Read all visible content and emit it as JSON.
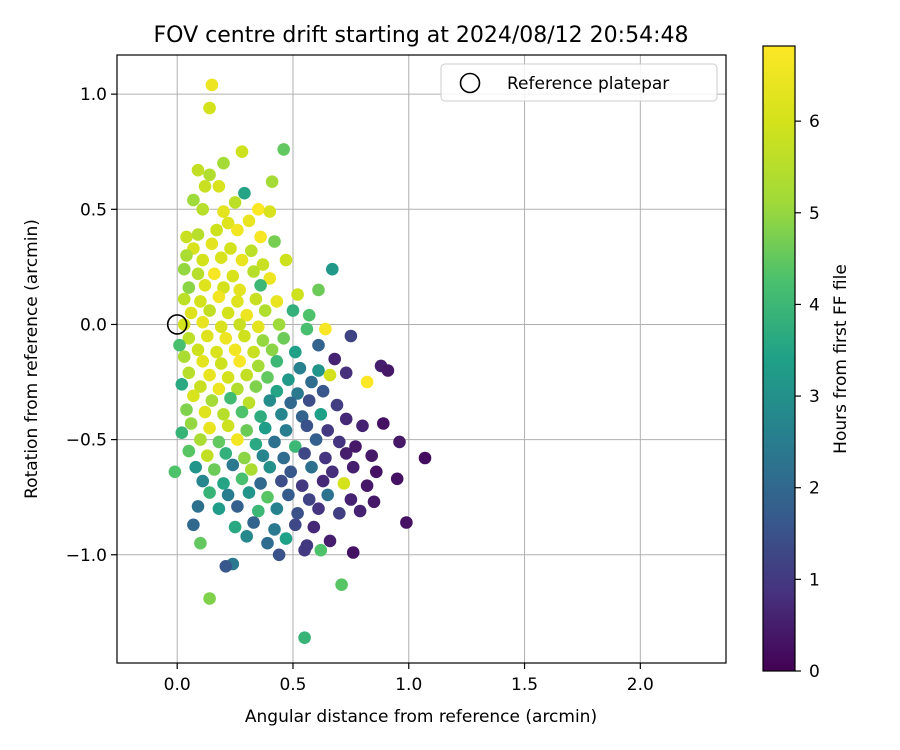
{
  "chart_data": {
    "type": "scatter",
    "title": "FOV centre drift starting at 2024/08/12 20:54:48",
    "xlabel": "Angular distance from reference (arcmin)",
    "ylabel": "Rotation from reference (arcmin)",
    "xlim": [
      -0.26,
      2.37
    ],
    "ylim": [
      -1.47,
      1.17
    ],
    "xticks": [
      0.0,
      0.5,
      1.0,
      1.5,
      2.0
    ],
    "xtick_labels": [
      "0.0",
      "0.5",
      "1.0",
      "1.5",
      "2.0"
    ],
    "yticks": [
      1.0,
      0.5,
      0.0,
      -0.5,
      -1.0
    ],
    "ytick_labels": [
      "1.0",
      "0.5",
      "0.0",
      "−0.5",
      "−1.0"
    ],
    "grid": true,
    "legend": {
      "placement": "top-right",
      "entries": [
        "Reference platepar"
      ]
    },
    "reference_point": {
      "x": 0.0,
      "y": 0.0,
      "marker": "open-circle"
    },
    "colorbar": {
      "label": "Hours from first FF file",
      "range": [
        0,
        6.82
      ],
      "ticks": [
        0,
        1,
        2,
        3,
        4,
        5,
        6
      ],
      "tick_labels": [
        "0",
        "1",
        "2",
        "3",
        "4",
        "5",
        "6"
      ],
      "colormap": "viridis"
    },
    "series": [
      {
        "marker": "filled-circle",
        "points": [
          [
            0.15,
            1.04,
            6.5
          ],
          [
            0.14,
            0.94,
            6.0
          ],
          [
            0.46,
            0.76,
            4.5
          ],
          [
            0.28,
            0.75,
            5.9
          ],
          [
            0.09,
            0.67,
            5.7
          ],
          [
            0.2,
            0.7,
            5.2
          ],
          [
            0.14,
            0.65,
            5.4
          ],
          [
            0.18,
            0.6,
            6.1
          ],
          [
            0.41,
            0.62,
            5.2
          ],
          [
            0.29,
            0.57,
            3.5
          ],
          [
            0.12,
            0.6,
            5.8
          ],
          [
            0.07,
            0.54,
            5.1
          ],
          [
            0.11,
            0.5,
            5.5
          ],
          [
            0.2,
            0.49,
            6.3
          ],
          [
            0.25,
            0.53,
            5.6
          ],
          [
            0.35,
            0.5,
            6.8
          ],
          [
            0.4,
            0.49,
            6.1
          ],
          [
            0.31,
            0.45,
            6.4
          ],
          [
            0.22,
            0.44,
            6.2
          ],
          [
            0.17,
            0.41,
            5.9
          ],
          [
            0.04,
            0.38,
            5.8
          ],
          [
            0.09,
            0.39,
            5.5
          ],
          [
            0.26,
            0.41,
            6.6
          ],
          [
            0.36,
            0.38,
            6.7
          ],
          [
            0.42,
            0.36,
            4.7
          ],
          [
            0.07,
            0.33,
            6.1
          ],
          [
            0.15,
            0.35,
            6.3
          ],
          [
            0.23,
            0.33,
            6.0
          ],
          [
            0.32,
            0.32,
            5.6
          ],
          [
            0.47,
            0.28,
            5.9
          ],
          [
            0.67,
            0.24,
            3.2
          ],
          [
            0.04,
            0.3,
            5.3
          ],
          [
            0.11,
            0.28,
            6.0
          ],
          [
            0.19,
            0.29,
            6.1
          ],
          [
            0.28,
            0.28,
            6.4
          ],
          [
            0.37,
            0.26,
            5.8
          ],
          [
            0.03,
            0.24,
            5.0
          ],
          [
            0.09,
            0.22,
            5.5
          ],
          [
            0.16,
            0.22,
            6.7
          ],
          [
            0.24,
            0.21,
            6.1
          ],
          [
            0.33,
            0.23,
            5.5
          ],
          [
            0.4,
            0.2,
            6.5
          ],
          [
            0.05,
            0.16,
            4.9
          ],
          [
            0.12,
            0.17,
            6.2
          ],
          [
            0.2,
            0.16,
            6.0
          ],
          [
            0.27,
            0.15,
            6.3
          ],
          [
            0.36,
            0.17,
            4.0
          ],
          [
            0.61,
            0.15,
            4.6
          ],
          [
            0.03,
            0.11,
            5.6
          ],
          [
            0.1,
            0.1,
            6.0
          ],
          [
            0.18,
            0.12,
            6.6
          ],
          [
            0.26,
            0.1,
            6.2
          ],
          [
            0.34,
            0.11,
            5.8
          ],
          [
            0.43,
            0.1,
            6.4
          ],
          [
            0.52,
            0.13,
            5.9
          ],
          [
            0.06,
            0.05,
            6.2
          ],
          [
            0.14,
            0.06,
            5.7
          ],
          [
            0.22,
            0.05,
            6.0
          ],
          [
            0.3,
            0.04,
            6.5
          ],
          [
            0.38,
            0.06,
            5.4
          ],
          [
            0.5,
            0.06,
            3.8
          ],
          [
            0.57,
            0.04,
            4.3
          ],
          [
            0.03,
            0.0,
            6.0
          ],
          [
            0.11,
            0.01,
            6.4
          ],
          [
            0.19,
            -0.01,
            6.1
          ],
          [
            0.27,
            0.0,
            5.8
          ],
          [
            0.35,
            -0.01,
            6.3
          ],
          [
            0.44,
            0.0,
            5.1
          ],
          [
            0.56,
            -0.02,
            4.2
          ],
          [
            0.64,
            -0.02,
            6.7
          ],
          [
            0.75,
            -0.05,
            1.2
          ],
          [
            0.05,
            -0.06,
            5.6
          ],
          [
            0.13,
            -0.05,
            6.2
          ],
          [
            0.21,
            -0.06,
            6.5
          ],
          [
            0.29,
            -0.05,
            5.9
          ],
          [
            0.37,
            -0.07,
            5.0
          ],
          [
            0.46,
            -0.06,
            4.6
          ],
          [
            0.61,
            -0.09,
            1.9
          ],
          [
            0.01,
            -0.09,
            4.2
          ],
          [
            0.09,
            -0.11,
            5.9
          ],
          [
            0.17,
            -0.12,
            6.1
          ],
          [
            0.25,
            -0.11,
            6.6
          ],
          [
            0.33,
            -0.12,
            5.8
          ],
          [
            0.41,
            -0.11,
            4.9
          ],
          [
            0.51,
            -0.12,
            3.4
          ],
          [
            0.68,
            -0.15,
            0.6
          ],
          [
            0.03,
            -0.14,
            5.3
          ],
          [
            0.11,
            -0.16,
            6.3
          ],
          [
            0.19,
            -0.17,
            5.9
          ],
          [
            0.27,
            -0.16,
            6.7
          ],
          [
            0.35,
            -0.18,
            5.2
          ],
          [
            0.43,
            -0.16,
            4.0
          ],
          [
            0.53,
            -0.19,
            2.6
          ],
          [
            0.61,
            -0.2,
            3.1
          ],
          [
            0.73,
            -0.21,
            0.8
          ],
          [
            0.88,
            -0.18,
            0.5
          ],
          [
            0.05,
            -0.21,
            5.5
          ],
          [
            0.14,
            -0.22,
            6.4
          ],
          [
            0.22,
            -0.23,
            6.0
          ],
          [
            0.3,
            -0.22,
            5.7
          ],
          [
            0.39,
            -0.23,
            4.5
          ],
          [
            0.48,
            -0.24,
            3.2
          ],
          [
            0.58,
            -0.25,
            2.1
          ],
          [
            0.66,
            -0.22,
            6.0
          ],
          [
            0.82,
            -0.25,
            6.8
          ],
          [
            0.91,
            -0.2,
            0.4
          ],
          [
            0.02,
            -0.26,
            3.6
          ],
          [
            0.1,
            -0.27,
            5.8
          ],
          [
            0.18,
            -0.28,
            6.5
          ],
          [
            0.26,
            -0.28,
            5.4
          ],
          [
            0.34,
            -0.27,
            4.8
          ],
          [
            0.43,
            -0.29,
            3.5
          ],
          [
            0.52,
            -0.3,
            2.4
          ],
          [
            0.63,
            -0.29,
            1.6
          ],
          [
            0.07,
            -0.31,
            6.1
          ],
          [
            0.15,
            -0.33,
            5.2
          ],
          [
            0.23,
            -0.32,
            4.1
          ],
          [
            0.31,
            -0.34,
            5.6
          ],
          [
            0.4,
            -0.33,
            2.9
          ],
          [
            0.49,
            -0.34,
            2.0
          ],
          [
            0.57,
            -0.33,
            1.4
          ],
          [
            0.69,
            -0.35,
            1.1
          ],
          [
            0.04,
            -0.37,
            4.8
          ],
          [
            0.12,
            -0.38,
            6.2
          ],
          [
            0.2,
            -0.39,
            5.5
          ],
          [
            0.28,
            -0.38,
            4.3
          ],
          [
            0.36,
            -0.4,
            3.7
          ],
          [
            0.45,
            -0.39,
            2.7
          ],
          [
            0.54,
            -0.4,
            1.9
          ],
          [
            0.62,
            -0.39,
            3.4
          ],
          [
            0.73,
            -0.41,
            0.7
          ],
          [
            0.06,
            -0.43,
            5.0
          ],
          [
            0.14,
            -0.45,
            6.4
          ],
          [
            0.22,
            -0.44,
            5.9
          ],
          [
            0.3,
            -0.46,
            4.6
          ],
          [
            0.38,
            -0.45,
            3.3
          ],
          [
            0.47,
            -0.46,
            2.5
          ],
          [
            0.56,
            -0.44,
            1.5
          ],
          [
            0.65,
            -0.46,
            1.0
          ],
          [
            0.8,
            -0.44,
            0.6
          ],
          [
            0.89,
            -0.43,
            0.3
          ],
          [
            0.02,
            -0.47,
            3.9
          ],
          [
            0.1,
            -0.5,
            5.3
          ],
          [
            0.18,
            -0.51,
            4.5
          ],
          [
            0.26,
            -0.5,
            6.6
          ],
          [
            0.34,
            -0.52,
            3.6
          ],
          [
            0.42,
            -0.51,
            2.2
          ],
          [
            0.51,
            -0.53,
            4.0
          ],
          [
            0.6,
            -0.5,
            1.8
          ],
          [
            0.7,
            -0.51,
            0.9
          ],
          [
            0.77,
            -0.53,
            0.4
          ],
          [
            0.96,
            -0.51,
            0.4
          ],
          [
            0.05,
            -0.55,
            4.4
          ],
          [
            0.13,
            -0.57,
            5.7
          ],
          [
            0.21,
            -0.56,
            3.8
          ],
          [
            0.29,
            -0.58,
            4.9
          ],
          [
            0.37,
            -0.57,
            2.7
          ],
          [
            0.46,
            -0.58,
            2.1
          ],
          [
            0.55,
            -0.56,
            1.3
          ],
          [
            0.64,
            -0.58,
            0.9
          ],
          [
            0.73,
            -0.56,
            0.5
          ],
          [
            0.84,
            -0.57,
            0.4
          ],
          [
            1.07,
            -0.58,
            0.2
          ],
          [
            0.08,
            -0.62,
            3.1
          ],
          [
            0.16,
            -0.63,
            4.6
          ],
          [
            0.24,
            -0.61,
            2.4
          ],
          [
            0.32,
            -0.63,
            5.3
          ],
          [
            0.4,
            -0.62,
            3.0
          ],
          [
            0.49,
            -0.64,
            1.6
          ],
          [
            0.58,
            -0.62,
            2.2
          ],
          [
            0.67,
            -0.64,
            0.8
          ],
          [
            0.76,
            -0.62,
            0.5
          ],
          [
            0.86,
            -0.64,
            0.3
          ],
          [
            -0.01,
            -0.64,
            4.3
          ],
          [
            0.11,
            -0.68,
            2.7
          ],
          [
            0.2,
            -0.69,
            3.5
          ],
          [
            0.28,
            -0.67,
            4.2
          ],
          [
            0.36,
            -0.69,
            2.0
          ],
          [
            0.45,
            -0.68,
            1.4
          ],
          [
            0.54,
            -0.7,
            1.0
          ],
          [
            0.63,
            -0.68,
            0.7
          ],
          [
            0.72,
            -0.69,
            6.0
          ],
          [
            0.82,
            -0.7,
            0.4
          ],
          [
            0.95,
            -0.67,
            0.3
          ],
          [
            0.14,
            -0.73,
            3.9
          ],
          [
            0.22,
            -0.74,
            2.5
          ],
          [
            0.31,
            -0.73,
            3.1
          ],
          [
            0.39,
            -0.75,
            4.4
          ],
          [
            0.48,
            -0.74,
            1.7
          ],
          [
            0.57,
            -0.76,
            1.2
          ],
          [
            0.65,
            -0.74,
            2.3
          ],
          [
            0.75,
            -0.76,
            0.6
          ],
          [
            0.85,
            -0.77,
            0.4
          ],
          [
            0.09,
            -0.79,
            2.2
          ],
          [
            0.18,
            -0.8,
            3.3
          ],
          [
            0.26,
            -0.79,
            1.8
          ],
          [
            0.35,
            -0.81,
            4.0
          ],
          [
            0.43,
            -0.8,
            2.6
          ],
          [
            0.52,
            -0.82,
            1.5
          ],
          [
            0.61,
            -0.8,
            0.9
          ],
          [
            0.7,
            -0.82,
            1.1
          ],
          [
            0.79,
            -0.81,
            0.6
          ],
          [
            0.07,
            -0.87,
            2.0
          ],
          [
            0.25,
            -0.88,
            3.6
          ],
          [
            0.33,
            -0.86,
            1.9
          ],
          [
            0.42,
            -0.89,
            2.4
          ],
          [
            0.51,
            -0.87,
            1.3
          ],
          [
            0.59,
            -0.88,
            0.7
          ],
          [
            0.99,
            -0.86,
            0.3
          ],
          [
            0.1,
            -0.95,
            4.5
          ],
          [
            0.3,
            -0.92,
            2.8
          ],
          [
            0.39,
            -0.95,
            2.1
          ],
          [
            0.47,
            -0.93,
            3.4
          ],
          [
            0.56,
            -0.96,
            1.0
          ],
          [
            0.66,
            -0.94,
            0.5
          ],
          [
            0.24,
            -1.04,
            2.4
          ],
          [
            0.21,
            -1.05,
            1.6
          ],
          [
            0.44,
            -1.0,
            1.5
          ],
          [
            0.55,
            -0.98,
            1.0
          ],
          [
            0.62,
            -0.98,
            4.3
          ],
          [
            0.76,
            -0.99,
            0.3
          ],
          [
            0.71,
            -1.13,
            4.4
          ],
          [
            0.14,
            -1.19,
            4.8
          ],
          [
            0.55,
            -1.36,
            3.9
          ]
        ]
      }
    ]
  }
}
